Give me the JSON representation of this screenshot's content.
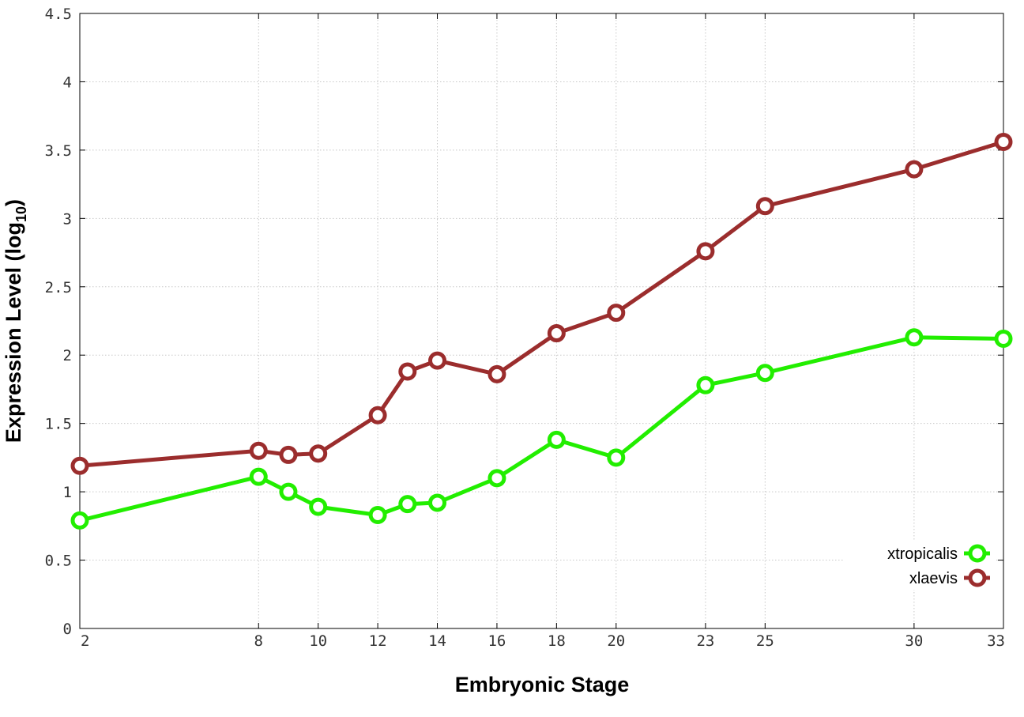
{
  "chart_data": {
    "type": "line",
    "xlabel": "Embryonic Stage",
    "ylabel_main": "Expression Level (log",
    "ylabel_sub": "10",
    "ylabel_close": ")",
    "ylim": [
      0,
      4.5
    ],
    "y_ticks": [
      "0",
      "0.5",
      "1",
      "1.5",
      "2",
      "2.5",
      "3",
      "3.5",
      "4",
      "4.5"
    ],
    "categories": [
      "2",
      "8",
      "9",
      "10",
      "12",
      "13",
      "14",
      "16",
      "18",
      "20",
      "23",
      "25",
      "30",
      "33"
    ],
    "x_tick_labels": [
      "2",
      "8",
      "10",
      "12",
      "14",
      "16",
      "18",
      "20",
      "23",
      "25",
      "30",
      "33"
    ],
    "grid": true,
    "legend_position": "bottom-right",
    "series": [
      {
        "name": "xtropicalis",
        "color": "#22ee00",
        "values": [
          0.79,
          1.11,
          1.0,
          0.89,
          0.83,
          0.91,
          0.92,
          1.1,
          1.38,
          1.25,
          1.78,
          1.87,
          2.13,
          2.12
        ]
      },
      {
        "name": "xlaevis",
        "color": "#9b2d2d",
        "values": [
          1.19,
          1.3,
          1.27,
          1.28,
          1.56,
          1.88,
          1.96,
          1.86,
          2.16,
          2.31,
          2.76,
          3.09,
          3.36,
          3.56
        ]
      }
    ]
  }
}
